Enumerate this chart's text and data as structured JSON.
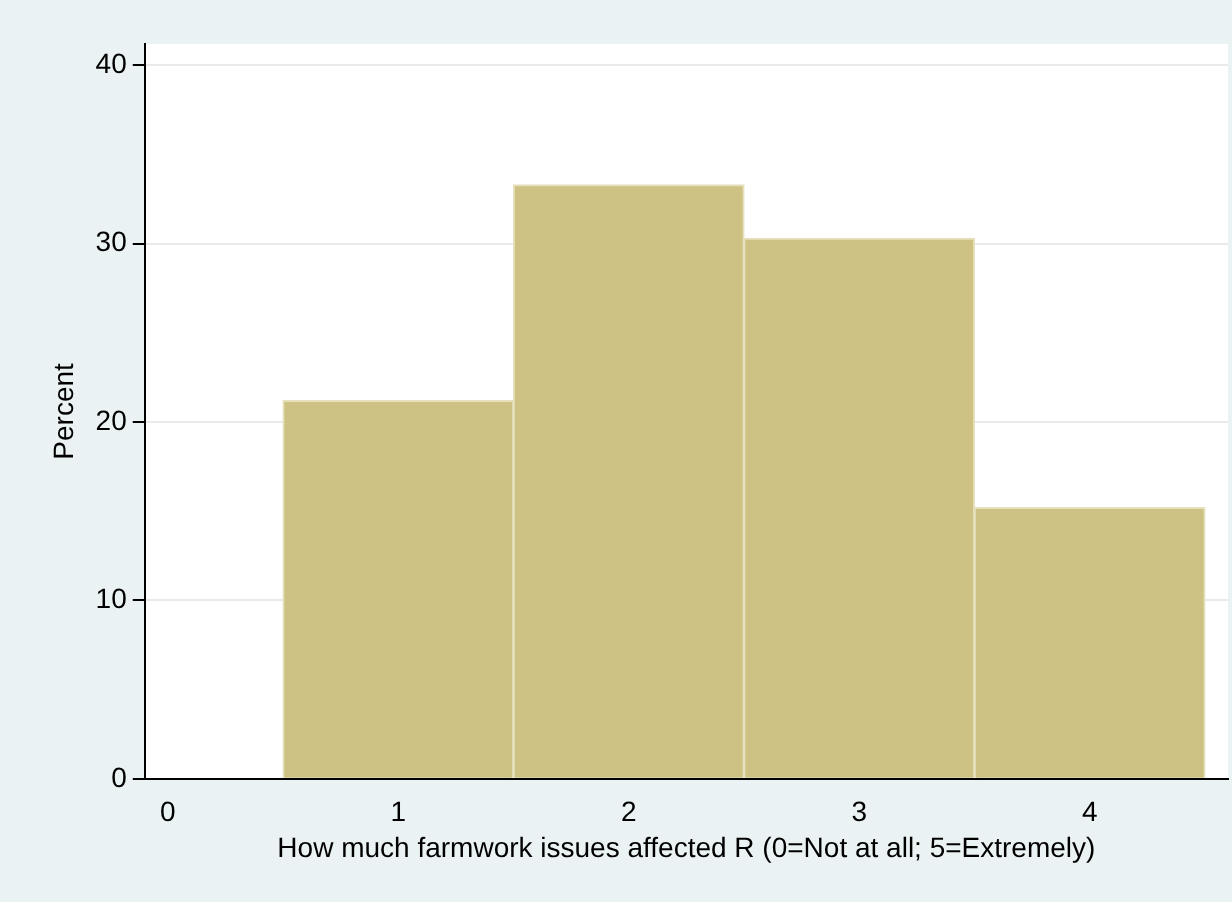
{
  "chart_data": {
    "type": "histogram",
    "xlabel": "How much farmwork issues affected R (0=Not at all; 5=Extremely)",
    "ylabel": "Percent",
    "bins": [
      0.5,
      1.5,
      2.5,
      3.5,
      4.5
    ],
    "values": [
      21.2,
      33.3,
      30.3,
      15.2
    ],
    "color": "#cdc283",
    "xlim": [
      -0.1,
      4.6
    ],
    "xticks": [
      0,
      1,
      2,
      3,
      4
    ],
    "ylim": [
      0,
      41.2
    ],
    "yticks": [
      0,
      10,
      20,
      30,
      40
    ],
    "grid": "y",
    "legend": false
  }
}
